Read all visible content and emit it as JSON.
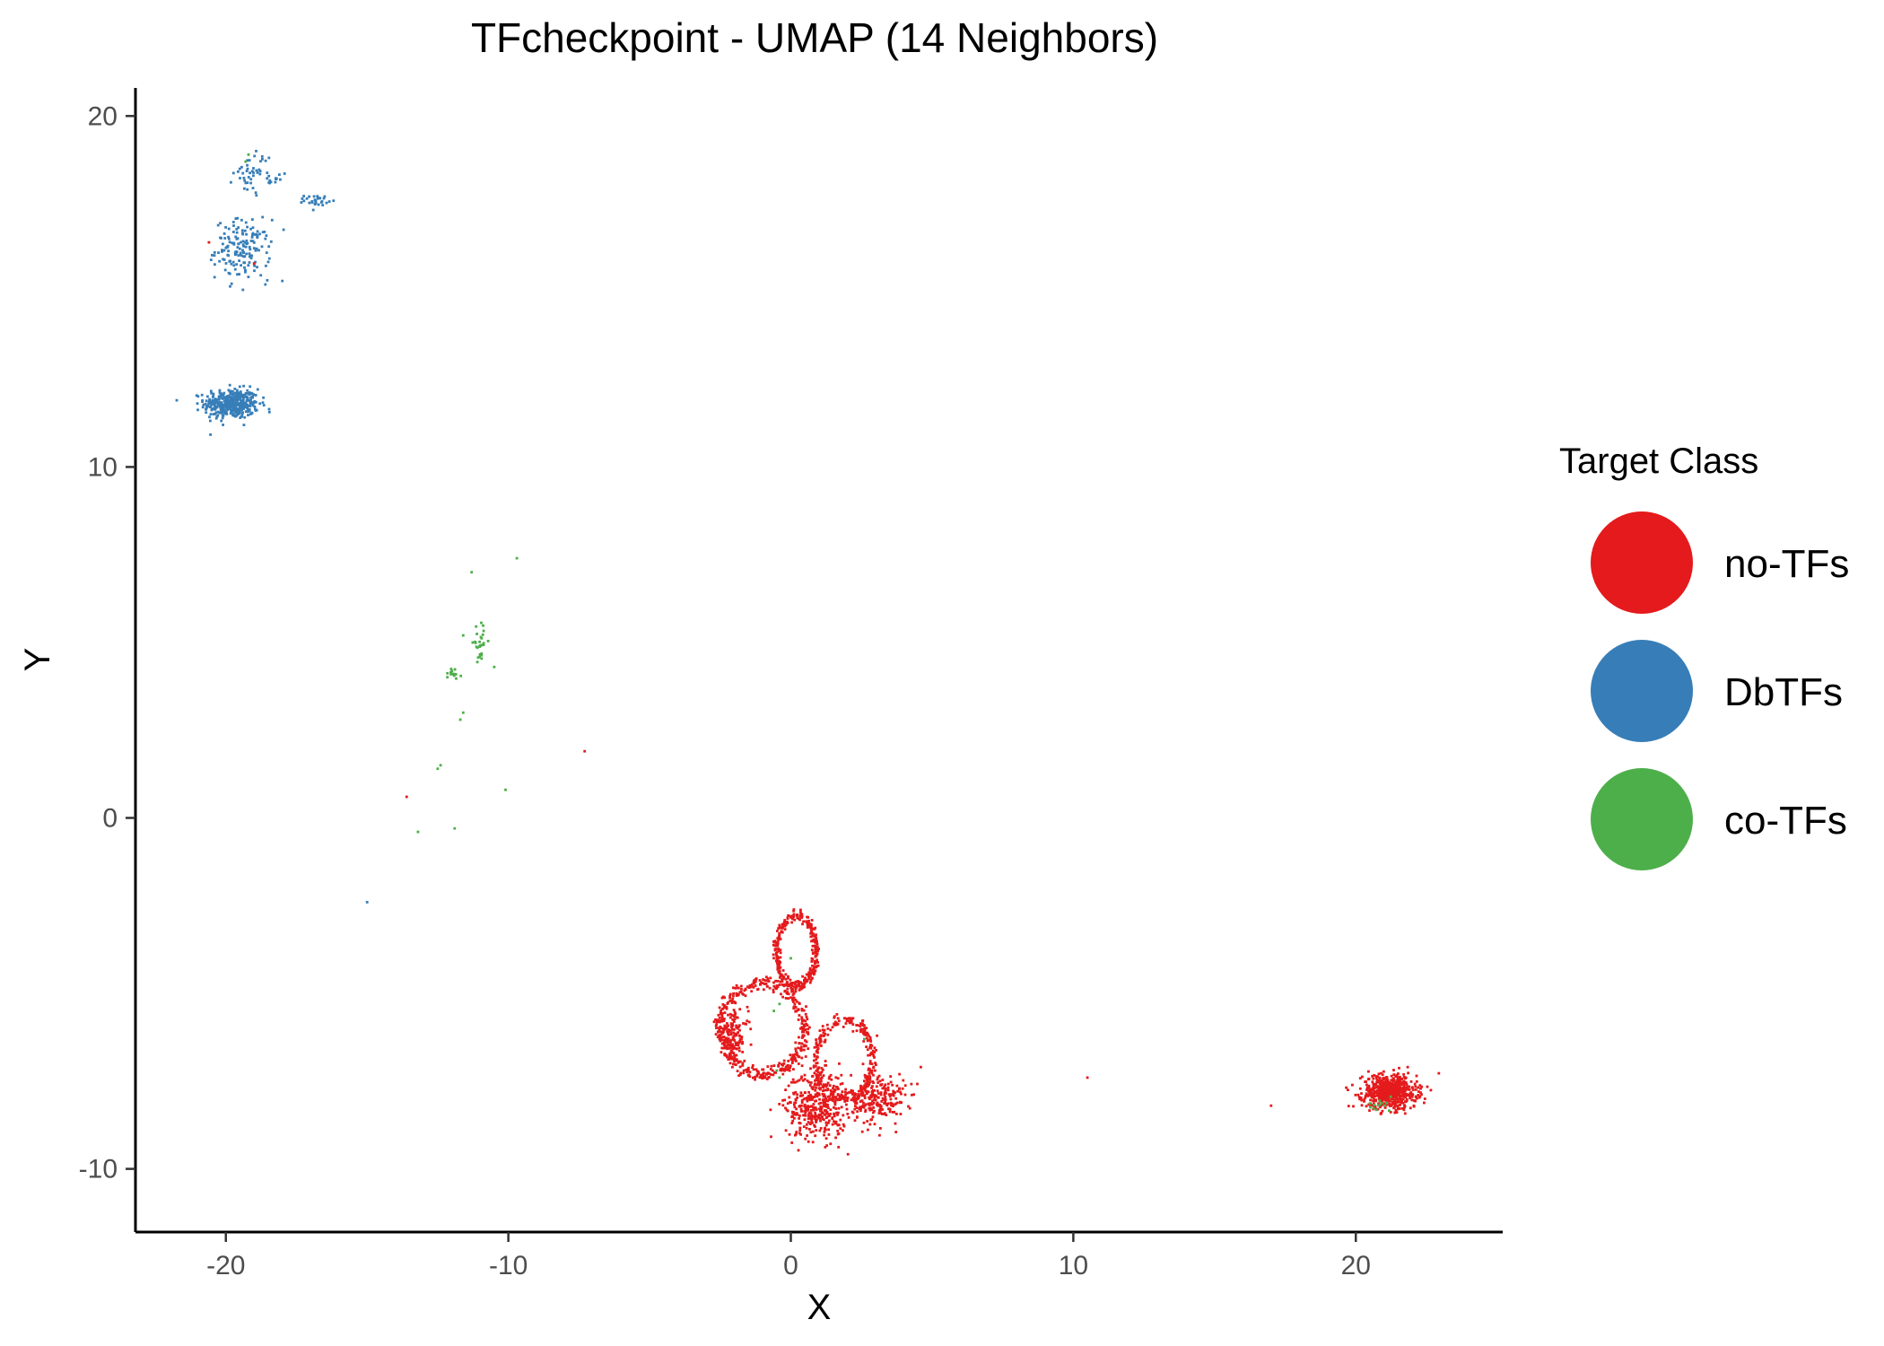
{
  "chart_data": {
    "type": "scatter",
    "title": "TFcheckpoint - UMAP (14 Neighbors)",
    "xlabel": "X",
    "ylabel": "Y",
    "xlim": [
      -23.2,
      25.2
    ],
    "ylim": [
      -11.8,
      20.8
    ],
    "xticks": [
      -20,
      -10,
      0,
      10,
      20
    ],
    "xtick_labels": [
      "-20",
      "-10",
      "0",
      "10",
      "20"
    ],
    "yticks": [
      -10,
      0,
      10,
      20
    ],
    "ytick_labels": [
      "-10",
      "0",
      "10",
      "20"
    ],
    "grid": false,
    "legend": {
      "title": "Target Class",
      "position": "right",
      "entries": [
        "no-TFs",
        "DbTFs",
        "co-TFs"
      ]
    },
    "colors": {
      "no-TFs": "#E41A1C",
      "DbTFs": "#377EB8",
      "co-TFs": "#4DAF4A"
    },
    "series": [
      {
        "name": "DbTFs",
        "clusters": [
          {
            "shape": "blob",
            "center": [
              -19.8,
              11.8
            ],
            "spread": [
              0.8,
              0.35
            ],
            "count": 420
          },
          {
            "shape": "blob",
            "center": [
              -19.4,
              16.2
            ],
            "spread": [
              0.8,
              0.7
            ],
            "count": 160
          },
          {
            "shape": "blob",
            "center": [
              -19.0,
              18.4
            ],
            "spread": [
              0.6,
              0.5
            ],
            "count": 45
          },
          {
            "shape": "blob",
            "center": [
              -16.8,
              17.6
            ],
            "spread": [
              0.35,
              0.12
            ],
            "count": 30
          },
          {
            "shape": "blob",
            "center": [
              -18.2,
              18.2
            ],
            "spread": [
              0.3,
              0.2
            ],
            "count": 10
          }
        ],
        "points": [
          [
            -15.0,
            -2.4
          ],
          [
            -20.1,
            11.2
          ],
          [
            -18.6,
            15.2
          ],
          [
            -18.0,
            15.3
          ]
        ]
      },
      {
        "name": "no-TFs",
        "clusters": [
          {
            "shape": "ring",
            "center": [
              0.2,
              -3.8
            ],
            "radii": [
              0.7,
              1.0
            ],
            "count": 320
          },
          {
            "shape": "ring",
            "center": [
              -1.0,
              -6.0
            ],
            "radii": [
              1.5,
              1.3
            ],
            "count": 420
          },
          {
            "shape": "ring",
            "center": [
              1.9,
              -6.9
            ],
            "radii": [
              1.0,
              1.1
            ],
            "count": 280
          },
          {
            "shape": "blob",
            "center": [
              0.9,
              -8.2
            ],
            "spread": [
              0.9,
              0.8
            ],
            "count": 380
          },
          {
            "shape": "blob",
            "center": [
              3.1,
              -8.0
            ],
            "spread": [
              0.8,
              0.6
            ],
            "count": 220
          },
          {
            "shape": "blob",
            "center": [
              21.2,
              -7.8
            ],
            "spread": [
              0.8,
              0.4
            ],
            "count": 650
          },
          {
            "shape": "blob",
            "center": [
              -2.0,
              -6.2
            ],
            "spread": [
              0.4,
              0.6
            ],
            "count": 120
          }
        ],
        "points": [
          [
            -7.3,
            1.9
          ],
          [
            -13.6,
            0.6
          ],
          [
            10.5,
            -7.4
          ],
          [
            17.0,
            -8.2
          ],
          [
            4.6,
            -7.1
          ],
          [
            -19.0,
            15.8
          ],
          [
            -20.6,
            16.4
          ]
        ]
      },
      {
        "name": "co-TFs",
        "clusters": [
          {
            "shape": "blob",
            "center": [
              -11.0,
              5.0
            ],
            "spread": [
              0.2,
              0.35
            ],
            "count": 28
          },
          {
            "shape": "blob",
            "center": [
              -12.0,
              4.1
            ],
            "spread": [
              0.25,
              0.12
            ],
            "count": 14
          },
          {
            "shape": "blob",
            "center": [
              20.8,
              -8.2
            ],
            "spread": [
              0.4,
              0.15
            ],
            "count": 14
          }
        ],
        "points": [
          [
            -11.6,
            5.2
          ],
          [
            -10.5,
            4.3
          ],
          [
            -11.6,
            3.0
          ],
          [
            -11.7,
            2.8
          ],
          [
            -12.4,
            1.5
          ],
          [
            -12.5,
            1.4
          ],
          [
            -10.1,
            0.8
          ],
          [
            -13.2,
            -0.4
          ],
          [
            -11.9,
            -0.3
          ],
          [
            -11.3,
            7.0
          ],
          [
            -9.7,
            7.4
          ],
          [
            -0.4,
            -5.3
          ],
          [
            -0.6,
            -5.5
          ],
          [
            0.0,
            -4.0
          ],
          [
            -0.5,
            -7.2
          ],
          [
            -0.4,
            -7.4
          ],
          [
            2.6,
            -6.3
          ],
          [
            -19.2,
            18.9
          ],
          [
            -19.3,
            18.7
          ]
        ]
      }
    ]
  }
}
